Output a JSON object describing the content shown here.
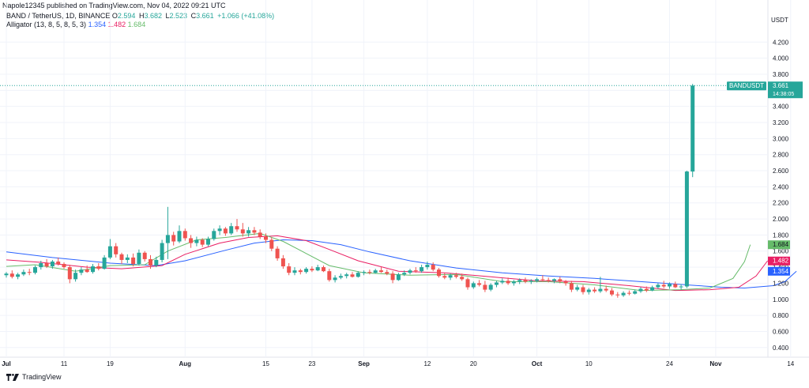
{
  "header": {
    "published": "Napole12345 published on TradingView.com, Nov 04, 2022 09:21 UTC"
  },
  "legend": {
    "symbol": "BAND / TetherUS, 1D, BINANCE",
    "ohlc": {
      "O": "2.594",
      "H": "3.682",
      "L": "2.523",
      "C": "3.661",
      "change": "+1.066 (+41.08%)"
    },
    "alligator_label": "Alligator (13, 8, 5, 8, 5, 3)",
    "alligator_values": {
      "jaw": "1.354",
      "teeth": "1.482",
      "lips": "1.684"
    }
  },
  "price_axis": {
    "unit": "USDT"
  },
  "price_tag": {
    "symbol": "BANDUSDT",
    "price": "3.661",
    "countdown": "14:38:05"
  },
  "footer": {
    "brand": "TradingView"
  },
  "colors": {
    "up": "#26a69a",
    "down": "#ef5350",
    "jaw": "#2962ff",
    "teeth": "#e91e63",
    "lips": "#66bb6a",
    "grid": "#f0f3fa"
  },
  "chart_data": {
    "type": "candlestick",
    "title": "BAND / TetherUS, 1D, BINANCE",
    "xlabel": "",
    "ylabel": "USDT",
    "ylim": [
      0.28,
      4.38
    ],
    "yticks": [
      "4.200",
      "4.000",
      "3.800",
      "3.600",
      "3.400",
      "3.200",
      "3.000",
      "2.800",
      "2.600",
      "2.400",
      "2.200",
      "2.000",
      "1.800",
      "1.600",
      "1.400",
      "1.200",
      "1.000",
      "0.800",
      "0.600",
      "0.400"
    ],
    "xticks": [
      {
        "label": "Jul",
        "bar": 0
      },
      {
        "label": "11",
        "bar": 10
      },
      {
        "label": "19",
        "bar": 18
      },
      {
        "label": "Aug",
        "bar": 31
      },
      {
        "label": "15",
        "bar": 45
      },
      {
        "label": "23",
        "bar": 53
      },
      {
        "label": "Sep",
        "bar": 62
      },
      {
        "label": "12",
        "bar": 73
      },
      {
        "label": "20",
        "bar": 81
      },
      {
        "label": "Oct",
        "bar": 92
      },
      {
        "label": "10",
        "bar": 101
      },
      {
        "label": "24",
        "bar": 115
      },
      {
        "label": "Nov",
        "bar": 123
      },
      {
        "label": "14",
        "bar": 136
      }
    ],
    "candles": [
      [
        1.3,
        1.34,
        1.27,
        1.32
      ],
      [
        1.32,
        1.36,
        1.26,
        1.28
      ],
      [
        1.28,
        1.33,
        1.25,
        1.31
      ],
      [
        1.31,
        1.37,
        1.29,
        1.34
      ],
      [
        1.34,
        1.38,
        1.3,
        1.33
      ],
      [
        1.33,
        1.42,
        1.31,
        1.4
      ],
      [
        1.4,
        1.48,
        1.37,
        1.45
      ],
      [
        1.45,
        1.5,
        1.39,
        1.41
      ],
      [
        1.41,
        1.49,
        1.38,
        1.47
      ],
      [
        1.47,
        1.52,
        1.42,
        1.44
      ],
      [
        1.44,
        1.46,
        1.38,
        1.4
      ],
      [
        1.4,
        1.43,
        1.2,
        1.25
      ],
      [
        1.25,
        1.37,
        1.22,
        1.33
      ],
      [
        1.33,
        1.4,
        1.3,
        1.37
      ],
      [
        1.37,
        1.42,
        1.33,
        1.34
      ],
      [
        1.34,
        1.44,
        1.32,
        1.41
      ],
      [
        1.41,
        1.45,
        1.36,
        1.38
      ],
      [
        1.38,
        1.55,
        1.37,
        1.52
      ],
      [
        1.52,
        1.75,
        1.5,
        1.66
      ],
      [
        1.66,
        1.7,
        1.52,
        1.56
      ],
      [
        1.56,
        1.58,
        1.44,
        1.49
      ],
      [
        1.49,
        1.56,
        1.45,
        1.52
      ],
      [
        1.52,
        1.57,
        1.41,
        1.44
      ],
      [
        1.44,
        1.62,
        1.42,
        1.58
      ],
      [
        1.58,
        1.6,
        1.47,
        1.5
      ],
      [
        1.5,
        1.55,
        1.38,
        1.42
      ],
      [
        1.42,
        1.53,
        1.4,
        1.49
      ],
      [
        1.49,
        1.74,
        1.46,
        1.7
      ],
      [
        1.7,
        2.15,
        1.5,
        1.8
      ],
      [
        1.8,
        1.84,
        1.67,
        1.72
      ],
      [
        1.72,
        1.92,
        1.7,
        1.85
      ],
      [
        1.85,
        1.88,
        1.73,
        1.76
      ],
      [
        1.76,
        1.8,
        1.64,
        1.7
      ],
      [
        1.7,
        1.78,
        1.66,
        1.74
      ],
      [
        1.74,
        1.76,
        1.65,
        1.68
      ],
      [
        1.68,
        1.78,
        1.66,
        1.75
      ],
      [
        1.75,
        1.88,
        1.73,
        1.85
      ],
      [
        1.85,
        1.92,
        1.8,
        1.88
      ],
      [
        1.88,
        1.9,
        1.79,
        1.82
      ],
      [
        1.82,
        1.95,
        1.8,
        1.91
      ],
      [
        1.91,
        2.0,
        1.84,
        1.87
      ],
      [
        1.87,
        1.95,
        1.78,
        1.82
      ],
      [
        1.82,
        1.9,
        1.78,
        1.86
      ],
      [
        1.86,
        1.9,
        1.8,
        1.83
      ],
      [
        1.83,
        1.87,
        1.75,
        1.78
      ],
      [
        1.78,
        1.82,
        1.7,
        1.74
      ],
      [
        1.74,
        1.77,
        1.6,
        1.63
      ],
      [
        1.63,
        1.66,
        1.48,
        1.51
      ],
      [
        1.51,
        1.55,
        1.38,
        1.41
      ],
      [
        1.41,
        1.45,
        1.3,
        1.33
      ],
      [
        1.33,
        1.4,
        1.3,
        1.36
      ],
      [
        1.36,
        1.38,
        1.31,
        1.34
      ],
      [
        1.34,
        1.4,
        1.32,
        1.38
      ],
      [
        1.38,
        1.41,
        1.34,
        1.36
      ],
      [
        1.36,
        1.43,
        1.35,
        1.4
      ],
      [
        1.4,
        1.42,
        1.34,
        1.35
      ],
      [
        1.35,
        1.38,
        1.22,
        1.24
      ],
      [
        1.24,
        1.3,
        1.21,
        1.27
      ],
      [
        1.27,
        1.32,
        1.25,
        1.29
      ],
      [
        1.29,
        1.33,
        1.26,
        1.31
      ],
      [
        1.31,
        1.34,
        1.27,
        1.28
      ],
      [
        1.28,
        1.35,
        1.27,
        1.33
      ],
      [
        1.33,
        1.36,
        1.3,
        1.34
      ],
      [
        1.34,
        1.37,
        1.31,
        1.33
      ],
      [
        1.33,
        1.38,
        1.32,
        1.36
      ],
      [
        1.36,
        1.4,
        1.33,
        1.34
      ],
      [
        1.34,
        1.37,
        1.3,
        1.32
      ],
      [
        1.32,
        1.35,
        1.2,
        1.24
      ],
      [
        1.24,
        1.33,
        1.23,
        1.31
      ],
      [
        1.31,
        1.36,
        1.29,
        1.33
      ],
      [
        1.33,
        1.38,
        1.31,
        1.36
      ],
      [
        1.36,
        1.4,
        1.33,
        1.35
      ],
      [
        1.35,
        1.43,
        1.33,
        1.4
      ],
      [
        1.4,
        1.47,
        1.37,
        1.43
      ],
      [
        1.43,
        1.46,
        1.35,
        1.37
      ],
      [
        1.37,
        1.39,
        1.27,
        1.29
      ],
      [
        1.29,
        1.33,
        1.25,
        1.27
      ],
      [
        1.27,
        1.32,
        1.24,
        1.3
      ],
      [
        1.3,
        1.33,
        1.26,
        1.28
      ],
      [
        1.28,
        1.32,
        1.23,
        1.25
      ],
      [
        1.25,
        1.27,
        1.12,
        1.15
      ],
      [
        1.15,
        1.22,
        1.13,
        1.2
      ],
      [
        1.2,
        1.24,
        1.16,
        1.18
      ],
      [
        1.18,
        1.23,
        1.09,
        1.12
      ],
      [
        1.12,
        1.2,
        1.1,
        1.18
      ],
      [
        1.18,
        1.23,
        1.15,
        1.21
      ],
      [
        1.21,
        1.26,
        1.19,
        1.23
      ],
      [
        1.23,
        1.27,
        1.18,
        1.2
      ],
      [
        1.2,
        1.24,
        1.17,
        1.22
      ],
      [
        1.22,
        1.26,
        1.19,
        1.24
      ],
      [
        1.24,
        1.27,
        1.2,
        1.22
      ],
      [
        1.22,
        1.25,
        1.19,
        1.23
      ],
      [
        1.23,
        1.27,
        1.21,
        1.25
      ],
      [
        1.25,
        1.3,
        1.22,
        1.24
      ],
      [
        1.24,
        1.27,
        1.21,
        1.23
      ],
      [
        1.23,
        1.26,
        1.2,
        1.25
      ],
      [
        1.25,
        1.28,
        1.2,
        1.22
      ],
      [
        1.22,
        1.24,
        1.17,
        1.2
      ],
      [
        1.2,
        1.23,
        1.09,
        1.12
      ],
      [
        1.12,
        1.18,
        1.1,
        1.15
      ],
      [
        1.15,
        1.18,
        1.06,
        1.09
      ],
      [
        1.09,
        1.14,
        1.06,
        1.12
      ],
      [
        1.12,
        1.15,
        1.08,
        1.1
      ],
      [
        1.1,
        1.28,
        1.08,
        1.13
      ],
      [
        1.13,
        1.17,
        1.09,
        1.11
      ],
      [
        1.11,
        1.14,
        1.04,
        1.06
      ],
      [
        1.06,
        1.09,
        1.02,
        1.05
      ],
      [
        1.05,
        1.1,
        1.03,
        1.08
      ],
      [
        1.08,
        1.11,
        1.05,
        1.07
      ],
      [
        1.07,
        1.12,
        1.06,
        1.1
      ],
      [
        1.1,
        1.15,
        1.08,
        1.13
      ],
      [
        1.13,
        1.16,
        1.09,
        1.11
      ],
      [
        1.11,
        1.17,
        1.1,
        1.15
      ],
      [
        1.15,
        1.2,
        1.13,
        1.18
      ],
      [
        1.18,
        1.23,
        1.14,
        1.16
      ],
      [
        1.16,
        1.21,
        1.13,
        1.19
      ],
      [
        1.19,
        1.22,
        1.14,
        1.15
      ],
      [
        1.15,
        1.19,
        1.12,
        1.16
      ],
      [
        1.16,
        2.6,
        1.14,
        2.59
      ],
      [
        2.59,
        3.68,
        2.52,
        3.66
      ]
    ],
    "series": [
      {
        "name": "Jaw",
        "color": "#2962ff",
        "values": [
          [
            0,
            1.59
          ],
          [
            8,
            1.52
          ],
          [
            18,
            1.45
          ],
          [
            26,
            1.42
          ],
          [
            31,
            1.48
          ],
          [
            38,
            1.61
          ],
          [
            43,
            1.7
          ],
          [
            48,
            1.74
          ],
          [
            53,
            1.73
          ],
          [
            58,
            1.68
          ],
          [
            63,
            1.59
          ],
          [
            70,
            1.48
          ],
          [
            78,
            1.39
          ],
          [
            86,
            1.33
          ],
          [
            94,
            1.29
          ],
          [
            102,
            1.26
          ],
          [
            110,
            1.22
          ],
          [
            118,
            1.18
          ],
          [
            124,
            1.15
          ],
          [
            128,
            1.14
          ],
          [
            133,
            1.17
          ],
          [
            135,
            1.22
          ],
          [
            137,
            1.35
          ]
        ]
      },
      {
        "name": "Teeth",
        "color": "#e91e63",
        "values": [
          [
            0,
            1.49
          ],
          [
            6,
            1.46
          ],
          [
            14,
            1.4
          ],
          [
            20,
            1.38
          ],
          [
            27,
            1.42
          ],
          [
            31,
            1.56
          ],
          [
            37,
            1.7
          ],
          [
            42,
            1.77
          ],
          [
            47,
            1.79
          ],
          [
            52,
            1.73
          ],
          [
            56,
            1.62
          ],
          [
            61,
            1.48
          ],
          [
            68,
            1.35
          ],
          [
            76,
            1.33
          ],
          [
            84,
            1.28
          ],
          [
            92,
            1.23
          ],
          [
            100,
            1.22
          ],
          [
            108,
            1.17
          ],
          [
            116,
            1.11
          ],
          [
            122,
            1.12
          ],
          [
            127,
            1.15
          ],
          [
            130,
            1.29
          ],
          [
            132,
            1.48
          ]
        ]
      },
      {
        "name": "Lips",
        "color": "#66bb6a",
        "values": [
          [
            0,
            1.41
          ],
          [
            5,
            1.43
          ],
          [
            12,
            1.35
          ],
          [
            18,
            1.42
          ],
          [
            24,
            1.43
          ],
          [
            28,
            1.6
          ],
          [
            33,
            1.74
          ],
          [
            38,
            1.77
          ],
          [
            44,
            1.82
          ],
          [
            48,
            1.72
          ],
          [
            52,
            1.57
          ],
          [
            56,
            1.42
          ],
          [
            62,
            1.33
          ],
          [
            70,
            1.3
          ],
          [
            78,
            1.31
          ],
          [
            86,
            1.22
          ],
          [
            94,
            1.22
          ],
          [
            102,
            1.18
          ],
          [
            110,
            1.11
          ],
          [
            117,
            1.12
          ],
          [
            122,
            1.14
          ],
          [
            126,
            1.26
          ],
          [
            128,
            1.47
          ],
          [
            129,
            1.68
          ]
        ]
      }
    ],
    "grid": true,
    "legend_position": "top-left"
  }
}
